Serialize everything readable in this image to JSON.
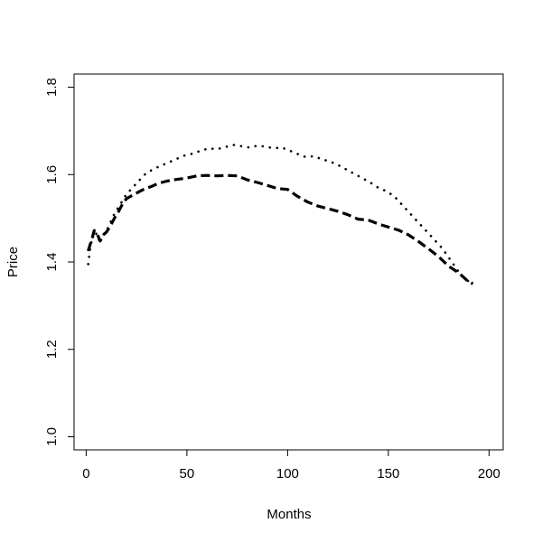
{
  "chart_data": {
    "type": "line",
    "title": "",
    "xlabel": "Months",
    "ylabel": "Price",
    "xlim": [
      -6,
      207
    ],
    "ylim": [
      0.97,
      1.83
    ],
    "x_ticks": [
      0,
      50,
      100,
      150,
      200
    ],
    "y_ticks": [
      1.0,
      1.2,
      1.4,
      1.6,
      1.8
    ],
    "x_tick_labels": [
      "0",
      "50",
      "100",
      "150",
      "200"
    ],
    "y_tick_labels": [
      "1.0",
      "1.2",
      "1.4",
      "1.6",
      "1.8"
    ],
    "grid": false,
    "legend": "none",
    "series": [
      {
        "line_style": "dotted",
        "color": "#000000",
        "points": [
          [
            1,
            1.395
          ],
          [
            2,
            1.43
          ],
          [
            3,
            1.455
          ],
          [
            4,
            1.47
          ],
          [
            5,
            1.465
          ],
          [
            6,
            1.45
          ],
          [
            7,
            1.455
          ],
          [
            8,
            1.46
          ],
          [
            10,
            1.47
          ],
          [
            12,
            1.49
          ],
          [
            14,
            1.51
          ],
          [
            16,
            1.525
          ],
          [
            18,
            1.54
          ],
          [
            20,
            1.555
          ],
          [
            23,
            1.57
          ],
          [
            26,
            1.585
          ],
          [
            29,
            1.6
          ],
          [
            33,
            1.612
          ],
          [
            37,
            1.62
          ],
          [
            41,
            1.628
          ],
          [
            45,
            1.636
          ],
          [
            49,
            1.644
          ],
          [
            53,
            1.648
          ],
          [
            57,
            1.655
          ],
          [
            61,
            1.66
          ],
          [
            65,
            1.658
          ],
          [
            69,
            1.663
          ],
          [
            73,
            1.668
          ],
          [
            77,
            1.665
          ],
          [
            81,
            1.662
          ],
          [
            85,
            1.666
          ],
          [
            89,
            1.664
          ],
          [
            93,
            1.66
          ],
          [
            97,
            1.662
          ],
          [
            101,
            1.655
          ],
          [
            105,
            1.647
          ],
          [
            109,
            1.64
          ],
          [
            113,
            1.642
          ],
          [
            117,
            1.635
          ],
          [
            121,
            1.63
          ],
          [
            125,
            1.622
          ],
          [
            129,
            1.612
          ],
          [
            133,
            1.602
          ],
          [
            137,
            1.592
          ],
          [
            141,
            1.582
          ],
          [
            145,
            1.57
          ],
          [
            149,
            1.562
          ],
          [
            153,
            1.55
          ],
          [
            157,
            1.53
          ],
          [
            161,
            1.51
          ],
          [
            165,
            1.49
          ],
          [
            169,
            1.47
          ],
          [
            173,
            1.45
          ],
          [
            177,
            1.43
          ],
          [
            180,
            1.41
          ],
          [
            183,
            1.39
          ],
          [
            186,
            1.37
          ],
          [
            189,
            1.358
          ],
          [
            192,
            1.35
          ]
        ]
      },
      {
        "line_style": "dashed",
        "color": "#000000",
        "points": [
          [
            1,
            1.425
          ],
          [
            2,
            1.44
          ],
          [
            3,
            1.455
          ],
          [
            4,
            1.472
          ],
          [
            5,
            1.468
          ],
          [
            6,
            1.458
          ],
          [
            7,
            1.448
          ],
          [
            8,
            1.46
          ],
          [
            10,
            1.468
          ],
          [
            12,
            1.482
          ],
          [
            14,
            1.5
          ],
          [
            16,
            1.515
          ],
          [
            18,
            1.532
          ],
          [
            20,
            1.545
          ],
          [
            24,
            1.555
          ],
          [
            28,
            1.565
          ],
          [
            32,
            1.572
          ],
          [
            36,
            1.58
          ],
          [
            40,
            1.585
          ],
          [
            45,
            1.589
          ],
          [
            50,
            1.592
          ],
          [
            55,
            1.597
          ],
          [
            60,
            1.598
          ],
          [
            65,
            1.597
          ],
          [
            70,
            1.598
          ],
          [
            75,
            1.597
          ],
          [
            80,
            1.588
          ],
          [
            85,
            1.582
          ],
          [
            90,
            1.575
          ],
          [
            95,
            1.568
          ],
          [
            100,
            1.566
          ],
          [
            105,
            1.55
          ],
          [
            110,
            1.537
          ],
          [
            115,
            1.528
          ],
          [
            120,
            1.522
          ],
          [
            125,
            1.516
          ],
          [
            130,
            1.508
          ],
          [
            135,
            1.498
          ],
          [
            140,
            1.496
          ],
          [
            145,
            1.487
          ],
          [
            150,
            1.48
          ],
          [
            155,
            1.473
          ],
          [
            160,
            1.462
          ],
          [
            165,
            1.447
          ],
          [
            170,
            1.43
          ],
          [
            175,
            1.412
          ],
          [
            180,
            1.39
          ],
          [
            185,
            1.375
          ],
          [
            189,
            1.358
          ],
          [
            192,
            1.35
          ]
        ]
      }
    ]
  }
}
